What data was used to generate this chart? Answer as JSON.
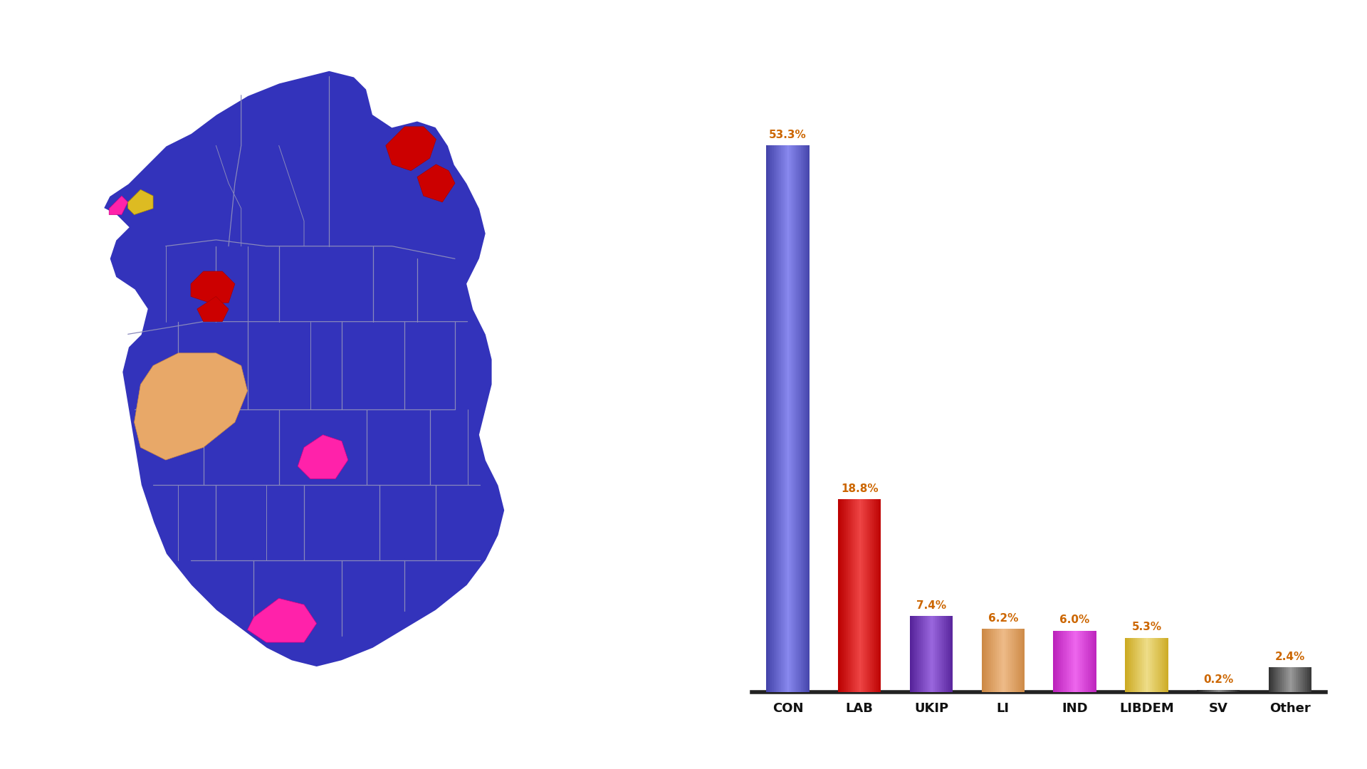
{
  "categories": [
    "CON",
    "LAB",
    "UKIP",
    "LI",
    "IND",
    "LIBDEM",
    "SV",
    "Other"
  ],
  "values": [
    53.3,
    18.8,
    7.4,
    6.2,
    6.0,
    5.3,
    0.2,
    2.4
  ],
  "bar_colors_dark": [
    "#4444aa",
    "#bb0000",
    "#552299",
    "#cc8844",
    "#bb22bb",
    "#ccaa22",
    "#222222",
    "#333333"
  ],
  "bar_colors_mid": [
    "#6666cc",
    "#dd1111",
    "#7744bb",
    "#ddaa66",
    "#dd44dd",
    "#ddcc44",
    "#555555",
    "#666666"
  ],
  "bar_colors_light": [
    "#8888ee",
    "#ee4444",
    "#9966dd",
    "#eebb88",
    "#ee66ee",
    "#eedd88",
    "#888888",
    "#999999"
  ],
  "label_color": "#cc6600",
  "background_color": "#ffffff",
  "map_main_color": "#3333bb",
  "map_border_color": "#8888bb",
  "map_lab_color": "#cc0000",
  "map_ind_color": "#e8a868",
  "map_pink_color": "#ff22aa",
  "map_yellow_color": "#ddbb22",
  "axis_line_color": "#222222",
  "label_fontsize": 13,
  "value_fontsize": 11,
  "bar_width": 0.6
}
